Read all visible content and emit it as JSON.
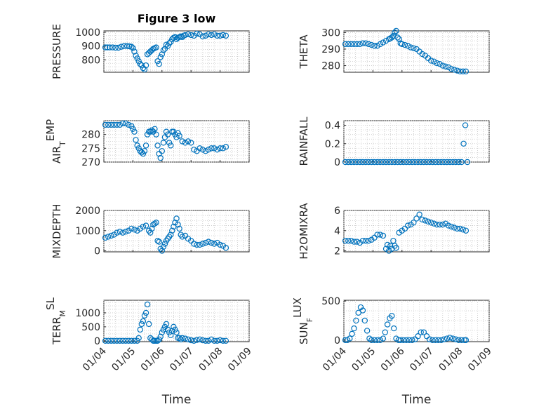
{
  "figure_title": "Figure 3 low",
  "marker_color": "#0072BD",
  "x_tick_labels": [
    "01/04",
    "01/05",
    "01/06",
    "01/07",
    "01/08",
    "01/09"
  ],
  "chart_data": [
    {
      "type": "scatter",
      "ylabel": "PRESSURE",
      "title": "Figure 3 low",
      "ylim": [
        710,
        1010
      ],
      "yticks": [
        800,
        900,
        1000
      ],
      "xlim": [
        0,
        5
      ],
      "grid": true,
      "x": [
        0.05,
        0.12,
        0.2,
        0.3,
        0.4,
        0.5,
        0.6,
        0.7,
        0.8,
        0.88,
        0.95,
        1.0,
        1.05,
        1.1,
        1.15,
        1.2,
        1.25,
        1.3,
        1.35,
        1.4,
        1.45,
        1.5,
        1.55,
        1.6,
        1.65,
        1.7,
        1.75,
        1.8,
        1.85,
        1.9,
        1.95,
        2.0,
        2.05,
        2.1,
        2.15,
        2.2,
        2.25,
        2.3,
        2.35,
        2.4,
        2.45,
        2.5,
        2.55,
        2.6,
        2.65,
        2.7,
        2.75,
        2.8,
        2.9,
        3.0,
        3.1,
        3.2,
        3.3,
        3.4,
        3.5,
        3.6,
        3.7,
        3.8,
        3.9,
        4.0,
        4.1,
        4.2
      ],
      "y": [
        890,
        890,
        890,
        890,
        888,
        888,
        895,
        900,
        900,
        898,
        895,
        885,
        860,
        830,
        810,
        790,
        770,
        760,
        740,
        730,
        760,
        840,
        850,
        860,
        870,
        880,
        885,
        890,
        790,
        770,
        820,
        840,
        870,
        880,
        910,
        900,
        920,
        930,
        950,
        960,
        965,
        950,
        960,
        965,
        970,
        965,
        975,
        980,
        985,
        980,
        975,
        990,
        985,
        970,
        975,
        985,
        980,
        985,
        975,
        975,
        980,
        975
      ]
    },
    {
      "type": "scatter",
      "ylabel": "THETA",
      "ylim": [
        276,
        301
      ],
      "yticks": [
        280,
        290,
        300
      ],
      "xlim": [
        0,
        5
      ],
      "grid": true,
      "x": [
        0.05,
        0.15,
        0.25,
        0.35,
        0.45,
        0.55,
        0.65,
        0.75,
        0.85,
        0.95,
        1.05,
        1.15,
        1.25,
        1.35,
        1.45,
        1.55,
        1.6,
        1.65,
        1.7,
        1.75,
        1.8,
        1.85,
        1.9,
        1.95,
        2.0,
        2.1,
        2.2,
        2.3,
        2.4,
        2.5,
        2.6,
        2.7,
        2.8,
        2.9,
        3.0,
        3.1,
        3.2,
        3.3,
        3.4,
        3.5,
        3.6,
        3.7,
        3.8,
        3.9,
        4.0,
        4.1,
        4.2
      ],
      "y": [
        293,
        293,
        293,
        293,
        293,
        293,
        293.5,
        293.5,
        293,
        292.5,
        292,
        292,
        293,
        294,
        295,
        296,
        296.5,
        297,
        298,
        300,
        301,
        297,
        296,
        293.5,
        293,
        292.5,
        292,
        291,
        290.5,
        290,
        288.5,
        287,
        286,
        284.5,
        283,
        282.5,
        281.5,
        281,
        280,
        279.5,
        279,
        278,
        277.5,
        277,
        276.5,
        276.5,
        276.5
      ]
    },
    {
      "type": "scatter",
      "ylabel": "AIR_TEMP",
      "ylim": [
        270,
        285
      ],
      "yticks": [
        270,
        275,
        280
      ],
      "xlim": [
        0,
        5
      ],
      "grid": true,
      "x": [
        0.05,
        0.15,
        0.25,
        0.35,
        0.45,
        0.55,
        0.65,
        0.75,
        0.85,
        0.95,
        1.0,
        1.05,
        1.1,
        1.15,
        1.2,
        1.25,
        1.3,
        1.35,
        1.4,
        1.45,
        1.5,
        1.55,
        1.6,
        1.65,
        1.7,
        1.75,
        1.8,
        1.85,
        1.9,
        1.95,
        2.0,
        2.05,
        2.1,
        2.15,
        2.2,
        2.25,
        2.3,
        2.35,
        2.4,
        2.45,
        2.5,
        2.55,
        2.6,
        2.7,
        2.8,
        2.9,
        3.0,
        3.1,
        3.2,
        3.3,
        3.4,
        3.5,
        3.6,
        3.7,
        3.8,
        3.9,
        4.0,
        4.1,
        4.2
      ],
      "y": [
        283.5,
        283.5,
        283.5,
        283.5,
        283.5,
        283.5,
        284,
        284,
        283.5,
        283,
        282,
        281,
        278,
        276,
        275,
        274,
        273.5,
        273,
        274,
        276,
        280,
        281,
        281,
        281.5,
        281,
        282,
        280,
        276,
        273,
        271.5,
        274,
        277,
        279,
        281,
        280,
        277,
        276,
        281,
        281,
        280,
        279,
        280.5,
        279.5,
        277.5,
        277,
        277.5,
        277,
        274.5,
        274,
        275,
        274.5,
        274,
        274.5,
        275,
        275,
        274.5,
        275,
        275,
        275.5
      ]
    },
    {
      "type": "scatter",
      "ylabel": "RAINFALL",
      "ylim": [
        0,
        0.45
      ],
      "yticks": [
        0,
        0.2,
        0.4
      ],
      "xlim": [
        0,
        5
      ],
      "grid": true,
      "x": [
        0.05,
        0.15,
        0.25,
        0.35,
        0.45,
        0.55,
        0.65,
        0.75,
        0.85,
        0.95,
        1.05,
        1.15,
        1.25,
        1.35,
        1.45,
        1.55,
        1.65,
        1.75,
        1.85,
        1.95,
        2.05,
        2.15,
        2.25,
        2.35,
        2.45,
        2.55,
        2.65,
        2.75,
        2.85,
        2.95,
        3.05,
        3.15,
        3.25,
        3.35,
        3.45,
        3.55,
        3.65,
        3.75,
        3.85,
        3.95,
        4.05,
        4.12,
        4.18,
        4.25
      ],
      "y": [
        0,
        0,
        0,
        0,
        0,
        0,
        0,
        0,
        0,
        0,
        0,
        0,
        0,
        0,
        0,
        0,
        0,
        0,
        0,
        0,
        0,
        0,
        0,
        0,
        0,
        0,
        0,
        0,
        0,
        0,
        0,
        0,
        0,
        0,
        0,
        0,
        0,
        0,
        0,
        0,
        0,
        0.2,
        0.4,
        0
      ]
    },
    {
      "type": "scatter",
      "ylabel": "MIXDEPTH",
      "ylim": [
        -50,
        2000
      ],
      "yticks": [
        0,
        1000,
        2000
      ],
      "xlim": [
        0,
        5
      ],
      "grid": true,
      "x": [
        0.05,
        0.15,
        0.25,
        0.35,
        0.45,
        0.55,
        0.65,
        0.75,
        0.85,
        0.95,
        1.05,
        1.15,
        1.25,
        1.35,
        1.45,
        1.55,
        1.6,
        1.65,
        1.7,
        1.75,
        1.8,
        1.85,
        1.9,
        1.95,
        2.0,
        2.05,
        2.1,
        2.15,
        2.2,
        2.25,
        2.3,
        2.35,
        2.4,
        2.45,
        2.5,
        2.55,
        2.6,
        2.65,
        2.7,
        2.8,
        2.9,
        3.0,
        3.1,
        3.2,
        3.3,
        3.4,
        3.5,
        3.6,
        3.7,
        3.8,
        3.9,
        4.0,
        4.1,
        4.2
      ],
      "y": [
        650,
        700,
        750,
        800,
        900,
        950,
        900,
        950,
        1000,
        1100,
        1050,
        1000,
        1100,
        1200,
        1250,
        1000,
        900,
        1100,
        1300,
        1350,
        1400,
        500,
        450,
        100,
        0,
        200,
        350,
        500,
        600,
        700,
        800,
        1000,
        1200,
        1400,
        1600,
        1300,
        1100,
        800,
        700,
        750,
        600,
        500,
        350,
        300,
        300,
        350,
        400,
        450,
        400,
        350,
        400,
        300,
        250,
        150
      ]
    },
    {
      "type": "scatter",
      "ylabel": "H2OMIXRA",
      "ylim": [
        1.9,
        6
      ],
      "yticks": [
        2,
        4,
        6
      ],
      "xlim": [
        0,
        5
      ],
      "grid": true,
      "x": [
        0.05,
        0.15,
        0.25,
        0.35,
        0.45,
        0.55,
        0.65,
        0.75,
        0.85,
        0.95,
        1.05,
        1.15,
        1.25,
        1.35,
        1.45,
        1.5,
        1.55,
        1.6,
        1.65,
        1.7,
        1.75,
        1.8,
        1.9,
        2.0,
        2.1,
        2.2,
        2.3,
        2.4,
        2.5,
        2.6,
        2.7,
        2.8,
        2.9,
        3.0,
        3.1,
        3.2,
        3.3,
        3.4,
        3.5,
        3.6,
        3.7,
        3.8,
        3.9,
        4.0,
        4.1,
        4.2
      ],
      "y": [
        3,
        3,
        3,
        2.9,
        2.9,
        2.8,
        3,
        3,
        3,
        3.1,
        3.3,
        3.6,
        3.6,
        3.5,
        2.2,
        2.6,
        2,
        2.5,
        2.2,
        3,
        2.5,
        2.3,
        3.8,
        4,
        4.2,
        4.5,
        4.6,
        4.8,
        5.2,
        5.6,
        5.1,
        5,
        4.9,
        4.8,
        4.7,
        4.6,
        4.6,
        4.6,
        4.7,
        4.5,
        4.4,
        4.3,
        4.2,
        4.2,
        4.1,
        4
      ]
    },
    {
      "type": "scatter",
      "ylabel": "TERR_MSL",
      "ylim": [
        -30,
        1450
      ],
      "yticks": [
        0,
        500,
        1000
      ],
      "xlim": [
        0,
        5
      ],
      "grid": true,
      "x": [
        0.05,
        0.15,
        0.25,
        0.35,
        0.45,
        0.55,
        0.65,
        0.75,
        0.85,
        0.95,
        1.05,
        1.15,
        1.2,
        1.25,
        1.3,
        1.35,
        1.4,
        1.45,
        1.5,
        1.55,
        1.6,
        1.65,
        1.7,
        1.75,
        1.8,
        1.85,
        1.9,
        1.95,
        2.0,
        2.05,
        2.1,
        2.15,
        2.2,
        2.25,
        2.3,
        2.35,
        2.4,
        2.45,
        2.5,
        2.55,
        2.6,
        2.65,
        2.7,
        2.8,
        2.9,
        3.0,
        3.1,
        3.2,
        3.3,
        3.4,
        3.5,
        3.6,
        3.7,
        3.8,
        3.9,
        4.0,
        4.1,
        4.2
      ],
      "y": [
        0,
        0,
        0,
        0,
        0,
        0,
        0,
        0,
        0,
        0,
        0,
        0,
        100,
        400,
        600,
        700,
        900,
        1000,
        1300,
        600,
        100,
        50,
        0,
        0,
        0,
        0,
        50,
        150,
        300,
        400,
        500,
        600,
        400,
        300,
        200,
        350,
        500,
        400,
        300,
        100,
        100,
        50,
        100,
        80,
        50,
        20,
        0,
        30,
        50,
        20,
        0,
        0,
        50,
        0,
        0,
        20,
        0,
        0
      ]
    },
    {
      "type": "scatter",
      "ylabel": "SUN_FLUX",
      "ylim": [
        -20,
        510
      ],
      "yticks": [
        0,
        500
      ],
      "xlim": [
        0,
        5
      ],
      "grid": true,
      "x": [
        0.05,
        0.12,
        0.2,
        0.28,
        0.35,
        0.42,
        0.5,
        0.58,
        0.65,
        0.72,
        0.8,
        0.88,
        0.95,
        1.05,
        1.15,
        1.25,
        1.35,
        1.42,
        1.5,
        1.58,
        1.65,
        1.72,
        1.8,
        1.88,
        1.95,
        2.05,
        2.15,
        2.25,
        2.35,
        2.45,
        2.55,
        2.65,
        2.75,
        2.85,
        2.95,
        3.05,
        3.15,
        3.25,
        3.35,
        3.45,
        3.55,
        3.65,
        3.75,
        3.85,
        3.95,
        4.05,
        4.15,
        4.2
      ],
      "y": [
        0,
        0,
        20,
        80,
        150,
        250,
        350,
        420,
        380,
        250,
        120,
        20,
        0,
        0,
        0,
        0,
        20,
        100,
        200,
        280,
        310,
        150,
        20,
        0,
        0,
        0,
        0,
        0,
        0,
        10,
        50,
        100,
        100,
        50,
        10,
        0,
        0,
        0,
        0,
        10,
        20,
        30,
        20,
        10,
        0,
        0,
        0,
        0
      ]
    }
  ],
  "x_axis_label": "Time"
}
